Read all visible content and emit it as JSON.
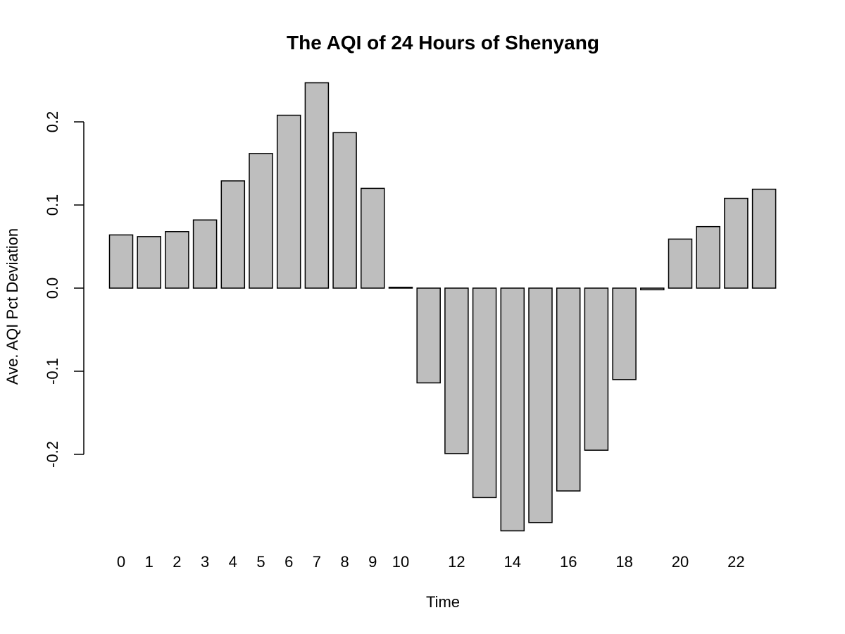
{
  "chart_data": {
    "type": "bar",
    "title": "The AQI of 24 Hours of Shenyang",
    "xlabel": "Time",
    "ylabel": "Ave. AQI Pct Deviation",
    "categories": [
      "0",
      "1",
      "2",
      "3",
      "4",
      "5",
      "6",
      "7",
      "8",
      "9",
      "10",
      "11",
      "12",
      "13",
      "14",
      "15",
      "16",
      "17",
      "18",
      "19",
      "20",
      "21",
      "22",
      "23"
    ],
    "x_tick_labels_shown": [
      "0",
      "1",
      "2",
      "3",
      "4",
      "5",
      "6",
      "7",
      "8",
      "9",
      "10",
      "12",
      "14",
      "16",
      "18",
      "20",
      "22"
    ],
    "values": [
      0.064,
      0.062,
      0.068,
      0.082,
      0.129,
      0.162,
      0.208,
      0.247,
      0.187,
      0.12,
      0.001,
      -0.114,
      -0.199,
      -0.252,
      -0.292,
      -0.282,
      -0.244,
      -0.195,
      -0.11,
      -0.002,
      0.059,
      0.074,
      0.108,
      0.119
    ],
    "y_ticks": [
      "-0.2",
      "-0.1",
      "0.0",
      "0.1",
      "0.2"
    ],
    "ylim": [
      -0.3,
      0.25
    ],
    "grid": false,
    "bar_color": "#bebebe",
    "edge_color": "#000000"
  }
}
